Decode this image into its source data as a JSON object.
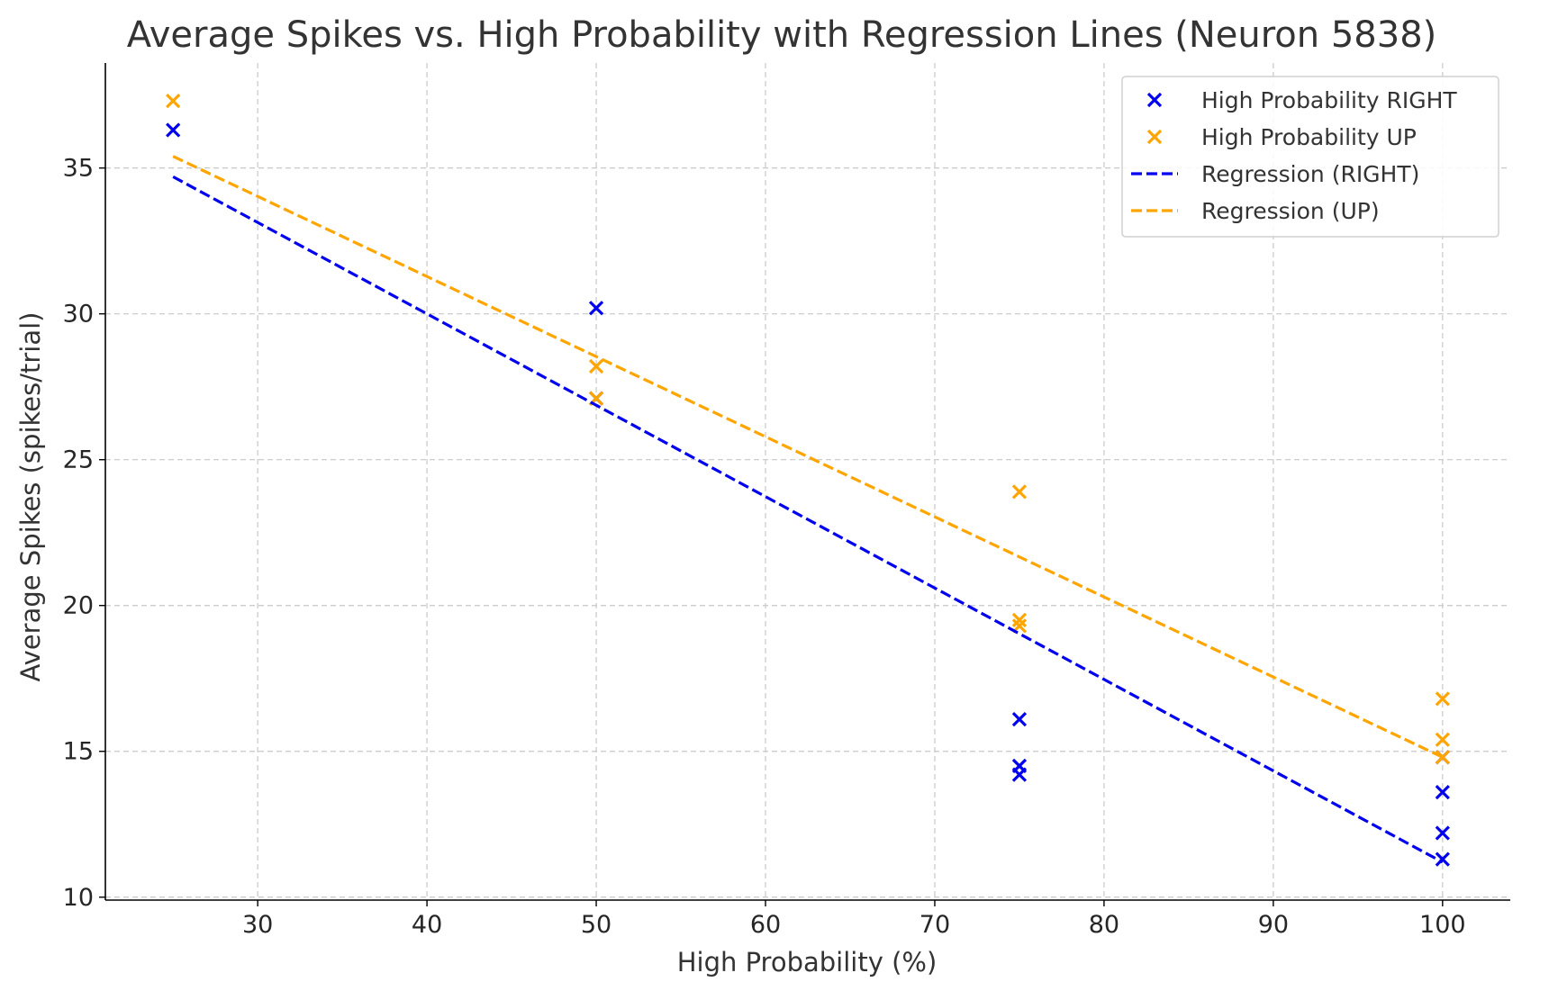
{
  "chart_data": {
    "type": "scatter",
    "title": "Average Spikes vs. High Probability with Regression Lines (Neuron 5838)",
    "xlabel": "High Probability (%)",
    "ylabel": "Average Spikes (spikes/trial)",
    "xlim": [
      21,
      104
    ],
    "ylim": [
      9.9,
      38.6
    ],
    "xticks": [
      30,
      40,
      50,
      60,
      70,
      80,
      90,
      100
    ],
    "yticks": [
      10,
      15,
      20,
      25,
      30,
      35
    ],
    "grid": true,
    "legend_position": "top-right",
    "series": [
      {
        "name": "High Probability RIGHT",
        "kind": "scatter",
        "marker": "x",
        "color": "#0000ee",
        "points": [
          [
            25,
            36.3
          ],
          [
            50,
            30.2
          ],
          [
            50,
            27.1
          ],
          [
            75,
            16.1
          ],
          [
            75,
            14.5
          ],
          [
            75,
            14.2
          ],
          [
            100,
            14.8
          ],
          [
            100,
            13.6
          ],
          [
            100,
            12.2
          ],
          [
            100,
            11.3
          ]
        ]
      },
      {
        "name": "High Probability UP",
        "kind": "scatter",
        "marker": "x",
        "color": "#ffa500",
        "points": [
          [
            25,
            37.3
          ],
          [
            50,
            28.2
          ],
          [
            50,
            27.1
          ],
          [
            75,
            23.9
          ],
          [
            75,
            19.5
          ],
          [
            75,
            19.3
          ],
          [
            100,
            16.8
          ],
          [
            100,
            15.4
          ],
          [
            100,
            14.8
          ]
        ]
      },
      {
        "name": "Regression (RIGHT)",
        "kind": "line",
        "dash": true,
        "color": "#0000ee",
        "points": [
          [
            25,
            34.7
          ],
          [
            100,
            11.2
          ]
        ]
      },
      {
        "name": "Regression (UP)",
        "kind": "line",
        "dash": true,
        "color": "#ffa500",
        "points": [
          [
            25,
            35.4
          ],
          [
            100,
            14.8
          ]
        ]
      }
    ]
  }
}
